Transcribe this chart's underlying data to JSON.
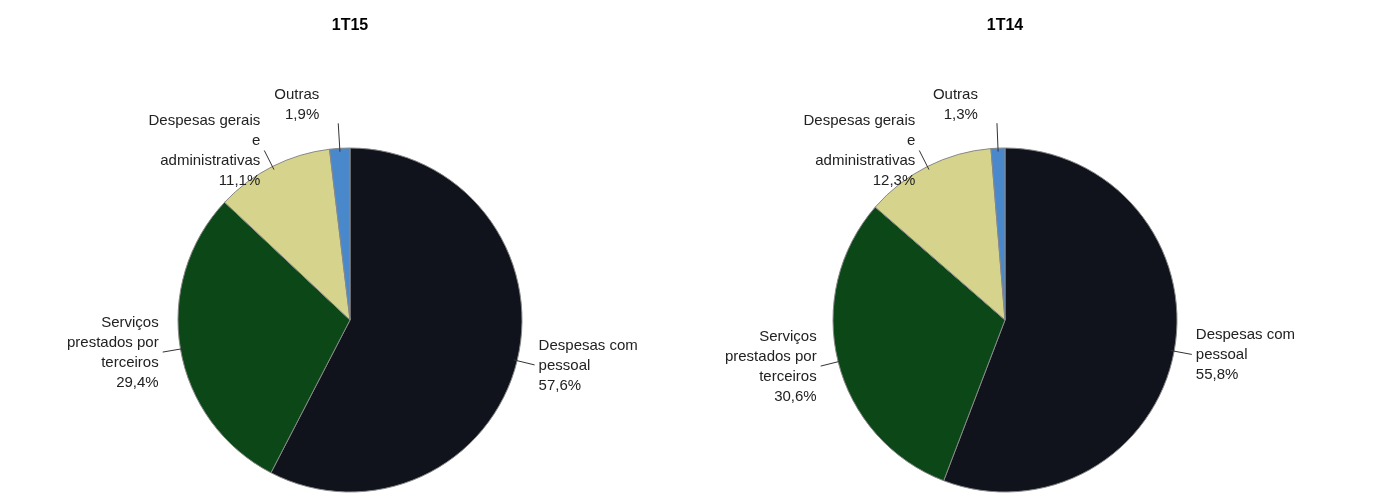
{
  "chart_data": [
    {
      "type": "pie",
      "title": "1T15",
      "categories": [
        "Despesas com\npessoal",
        "Serviços\nprestados por\nterceiros",
        "Despesas gerais\ne\nadministrativas",
        "Outras"
      ],
      "values": [
        57.6,
        29.4,
        11.1,
        1.9
      ],
      "colors": [
        "#10131c",
        "#0b4717",
        "#d6d38c",
        "#4a88cc"
      ],
      "value_labels": [
        "57,6%",
        "29,4%",
        "11,1%",
        "1,9%"
      ]
    },
    {
      "type": "pie",
      "title": "1T14",
      "categories": [
        "Despesas com\npessoal",
        "Serviços\nprestados por\nterceiros",
        "Despesas gerais\ne\nadministrativas",
        "Outras"
      ],
      "values": [
        55.8,
        30.6,
        12.3,
        1.3
      ],
      "colors": [
        "#10131c",
        "#0b4717",
        "#d6d38c",
        "#4a88cc"
      ],
      "value_labels": [
        "55,8%",
        "30,6%",
        "12,3%",
        "1,3%"
      ]
    }
  ]
}
